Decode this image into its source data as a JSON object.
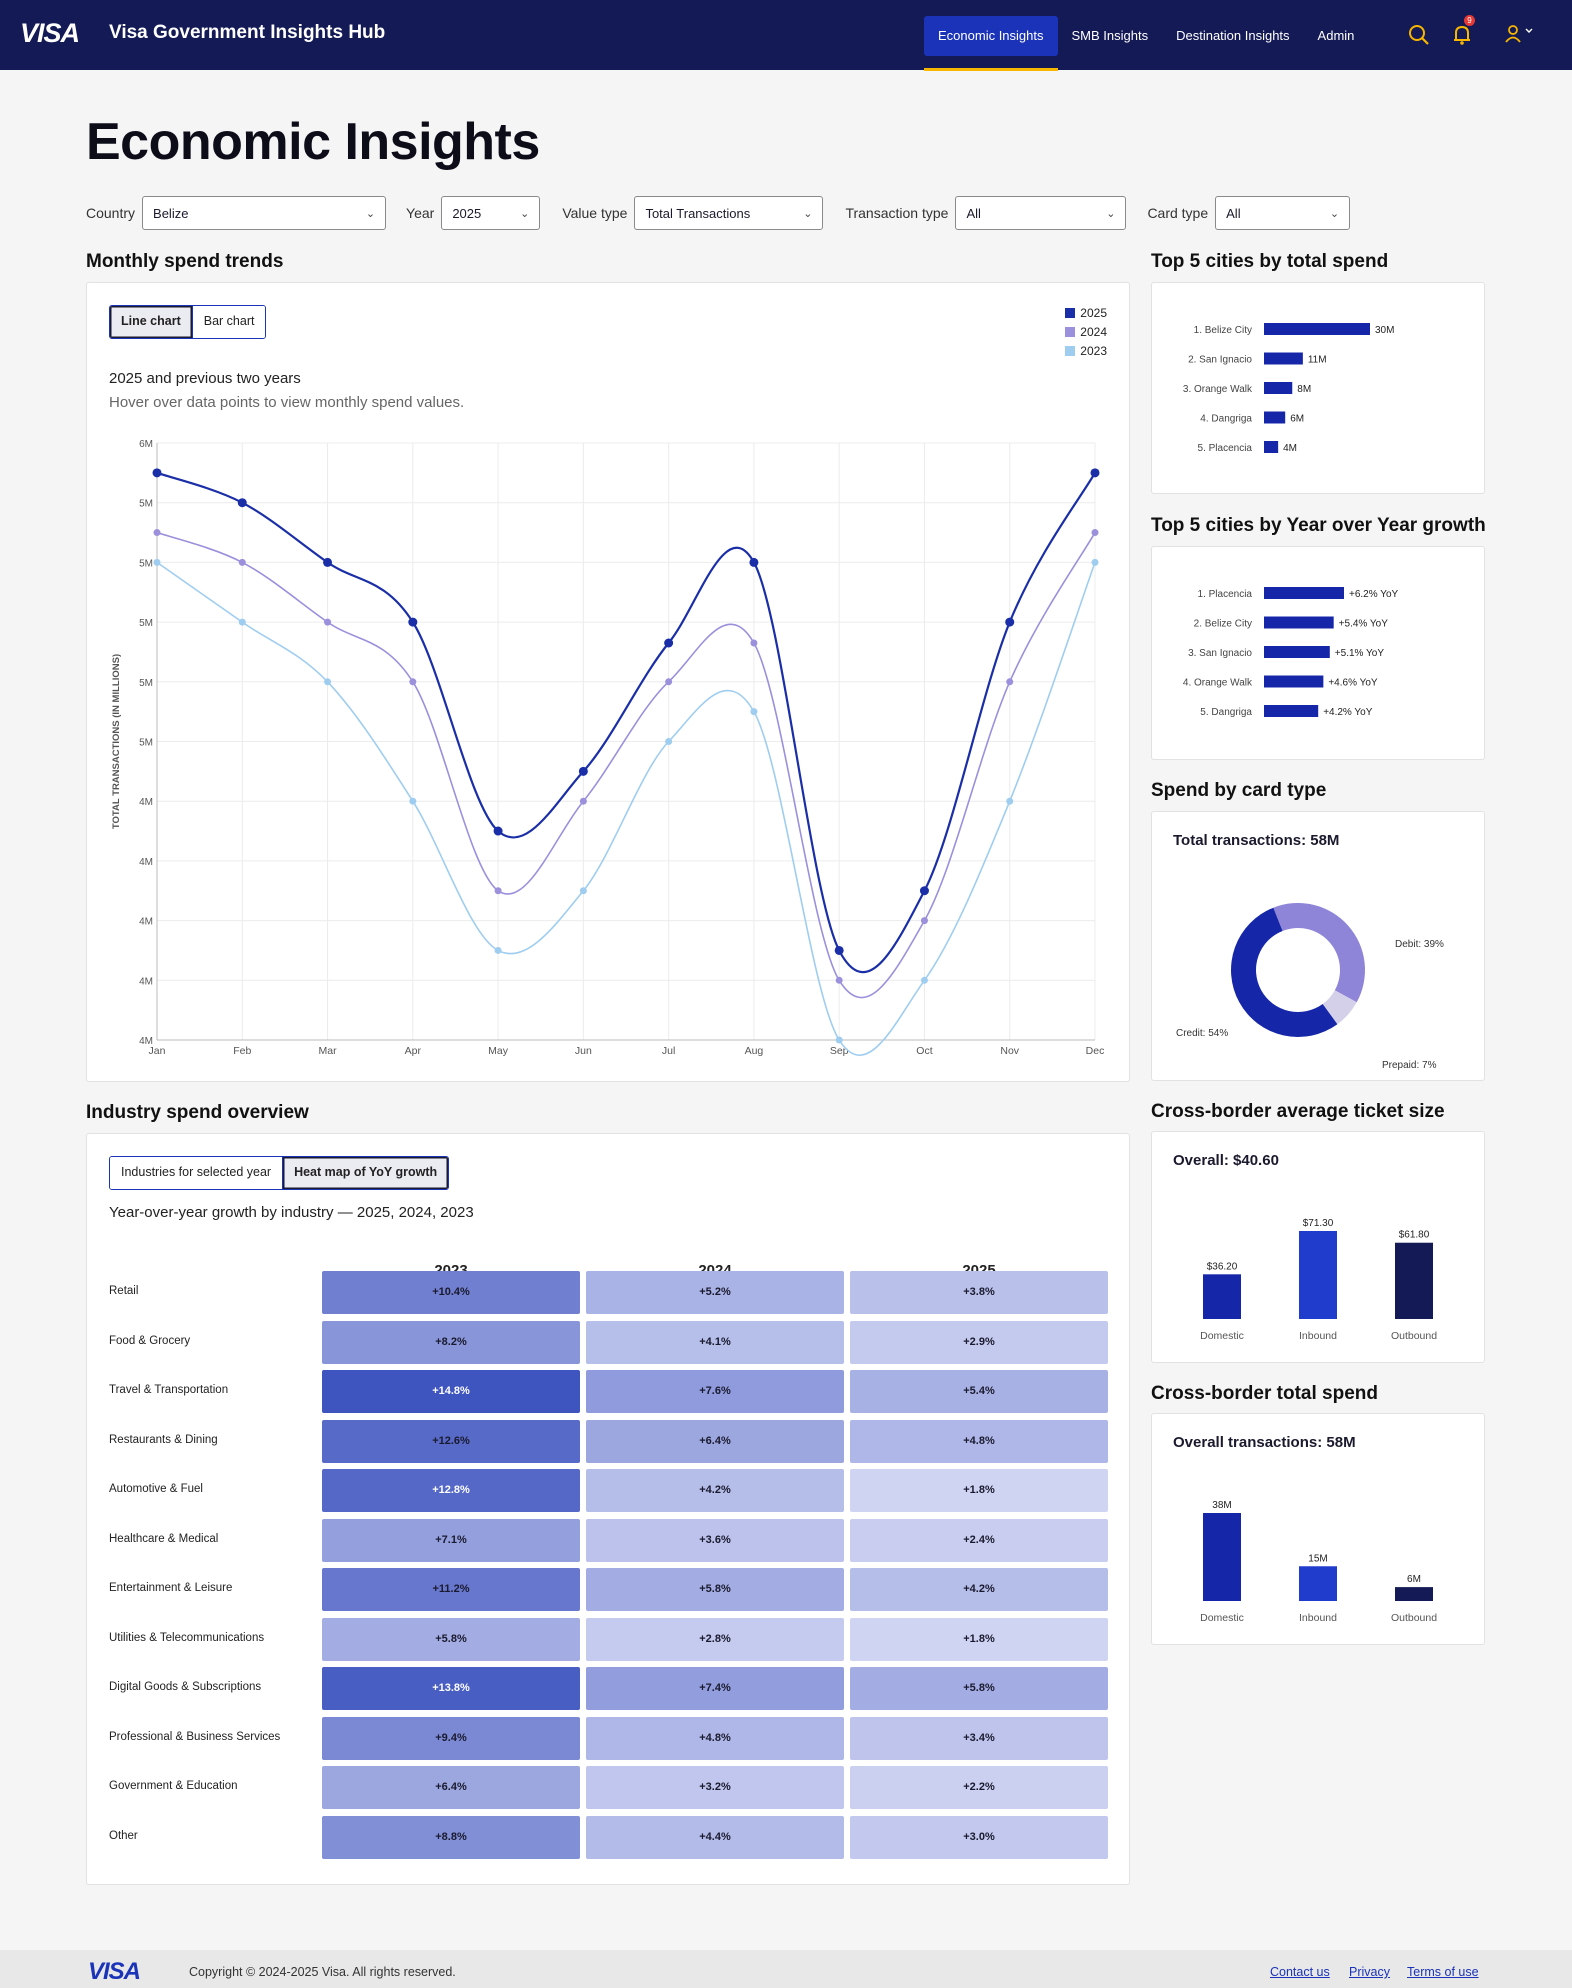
{
  "header": {
    "logo": "VISA",
    "app_title": "Visa Government Insights Hub",
    "nav": [
      "Economic Insights",
      "SMB Insights",
      "Destination Insights",
      "Admin"
    ],
    "active_nav": "Economic Insights",
    "notification_count": "9",
    "accent": "#f7b600"
  },
  "page": {
    "title": "Economic Insights"
  },
  "filters": {
    "country_label": "Country",
    "country_value": "Belize",
    "year_label": "Year",
    "year_value": "2025",
    "value_type_label": "Value type",
    "value_type_value": "Total Transactions",
    "transaction_type_label": "Transaction type",
    "transaction_type_value": "All",
    "card_type_label": "Card type",
    "card_type_value": "All"
  },
  "monthly": {
    "section_title": "Monthly spend trends",
    "tab_line": "Line chart",
    "tab_bar": "Bar chart",
    "chart_title": "2025 and previous two years",
    "chart_subtitle": "Hover over data points to view monthly spend values."
  },
  "chart_data": [
    {
      "type": "line",
      "x": [
        "Jan",
        "Feb",
        "Mar",
        "Apr",
        "May",
        "Jun",
        "Jul",
        "Aug",
        "Sep",
        "Oct",
        "Nov",
        "Dec"
      ],
      "ylabel": "TOTAL TRANSACTIONS (IN MILLIONS)",
      "ylim": [
        4.0,
        6.0
      ],
      "y_tick_labels": [
        "6M",
        "5M",
        "5M",
        "5M",
        "5M",
        "5M",
        "4M",
        "4M",
        "4M",
        "4M",
        "4M"
      ],
      "legend": "top-right",
      "grid": true,
      "series": [
        {
          "name": "2025",
          "color": "#1a2ea8",
          "values": [
            5.9,
            5.8,
            5.6,
            5.4,
            4.7,
            4.9,
            5.33,
            5.6,
            4.3,
            4.5,
            5.4,
            5.9
          ]
        },
        {
          "name": "2024",
          "color": "#9a90dc",
          "values": [
            5.7,
            5.6,
            5.4,
            5.2,
            4.5,
            4.8,
            5.2,
            5.33,
            4.2,
            4.4,
            5.2,
            5.7
          ]
        },
        {
          "name": "2023",
          "color": "#9fcdf0",
          "values": [
            5.6,
            5.4,
            5.2,
            4.8,
            4.3,
            4.5,
            5.0,
            5.1,
            4.0,
            4.2,
            4.8,
            5.6
          ]
        }
      ]
    },
    {
      "type": "bar",
      "title": "Top 5 cities by total spend",
      "categories": [
        "1. Belize City",
        "2. San Ignacio",
        "3. Orange Walk",
        "4. Dangriga",
        "5. Placencia"
      ],
      "values": [
        30,
        11,
        8,
        6,
        4
      ],
      "value_labels": [
        "30M",
        "11M",
        "8M",
        "6M",
        "4M"
      ]
    },
    {
      "type": "bar",
      "title": "Top 5 cities by Year over Year growth",
      "categories": [
        "1. Placencia",
        "2. Belize City",
        "3. San Ignacio",
        "4. Orange Walk",
        "5. Dangriga"
      ],
      "values": [
        6.2,
        5.4,
        5.1,
        4.6,
        4.2
      ],
      "value_labels": [
        "+6.2% YoY",
        "+5.4% YoY",
        "+5.1% YoY",
        "+4.6% YoY",
        "+4.2% YoY"
      ]
    },
    {
      "type": "pie",
      "title": "Spend by card type",
      "subtitle": "Total transactions: 58M",
      "categories": [
        "Credit",
        "Debit",
        "Prepaid"
      ],
      "values": [
        54,
        39,
        7
      ],
      "value_labels": [
        "Credit: 54%",
        "Debit: 39%",
        "Prepaid: 7%"
      ],
      "colors": [
        "#1527a8",
        "#8e84d8",
        "#d4d0ea"
      ]
    },
    {
      "type": "bar",
      "title": "Cross-border average ticket size",
      "subtitle": "Overall: $40.60",
      "categories": [
        "Domestic",
        "Inbound",
        "Outbound"
      ],
      "values": [
        36.2,
        71.3,
        61.8
      ],
      "value_labels": [
        "$36.20",
        "$71.30",
        "$61.80"
      ],
      "colors": [
        "#1527a8",
        "#1f3ccc",
        "#141a55"
      ]
    },
    {
      "type": "bar",
      "title": "Cross-border total spend",
      "subtitle": "Overall transactions: 58M",
      "categories": [
        "Domestic",
        "Inbound",
        "Outbound"
      ],
      "values": [
        38,
        15,
        6
      ],
      "value_labels": [
        "38M",
        "15M",
        "6M"
      ],
      "colors": [
        "#1527a8",
        "#1f3ccc",
        "#141a55"
      ]
    },
    {
      "type": "heatmap",
      "title": "Year-over-year growth by industry — 2025, 2024, 2023",
      "columns": [
        "2023",
        "2024",
        "2025"
      ],
      "rows": [
        "Retail",
        "Food & Grocery",
        "Travel & Transportation",
        "Restaurants & Dining",
        "Automotive & Fuel",
        "Healthcare & Medical",
        "Entertainment & Leisure",
        "Utilities & Telecommunications",
        "Digital Goods & Subscriptions",
        "Professional & Business Services",
        "Government & Education",
        "Other"
      ],
      "values": [
        [
          10.4,
          5.2,
          3.8
        ],
        [
          8.2,
          4.1,
          2.9
        ],
        [
          14.8,
          7.6,
          5.4
        ],
        [
          12.6,
          6.4,
          4.8
        ],
        [
          12.8,
          4.2,
          1.8
        ],
        [
          7.1,
          3.6,
          2.4
        ],
        [
          11.2,
          5.8,
          4.2
        ],
        [
          5.8,
          2.8,
          1.8
        ],
        [
          13.8,
          7.4,
          5.8
        ],
        [
          9.4,
          4.8,
          3.4
        ],
        [
          6.4,
          3.2,
          2.2
        ],
        [
          8.8,
          4.4,
          3.0
        ]
      ],
      "labels": [
        [
          "+10.4%",
          "+5.2%",
          "+3.8%"
        ],
        [
          "+8.2%",
          "+4.1%",
          "+2.9%"
        ],
        [
          "+14.8%",
          "+7.6%",
          "+5.4%"
        ],
        [
          "+12.6%",
          "+6.4%",
          "+4.8%"
        ],
        [
          "+12.8%",
          "+4.2%",
          "+1.8%"
        ],
        [
          "+7.1%",
          "+3.6%",
          "+2.4%"
        ],
        [
          "+11.2%",
          "+5.8%",
          "+4.2%"
        ],
        [
          "+5.8%",
          "+2.8%",
          "+1.8%"
        ],
        [
          "+13.8%",
          "+7.4%",
          "+5.8%"
        ],
        [
          "+9.4%",
          "+4.8%",
          "+3.4%"
        ],
        [
          "+6.4%",
          "+3.2%",
          "+2.2%"
        ],
        [
          "+8.8%",
          "+4.4%",
          "+3.0%"
        ]
      ]
    }
  ],
  "industry": {
    "section_title": "Industry spend overview",
    "tab_industries": "Industries for selected year",
    "tab_heatmap": "Heat map of YoY growth",
    "chart_title": "Year-over-year growth by industry — 2025, 2024, 2023"
  },
  "side": {
    "top_cities_title": "Top 5 cities by total spend",
    "yoy_title": "Top 5 cities by Year over Year growth",
    "card_type_title": "Spend by card type",
    "card_type_total": "Total transactions: 58M",
    "ticket_title": "Cross-border average ticket size",
    "ticket_overall": "Overall: $40.60",
    "xb_title": "Cross-border total spend",
    "xb_overall": "Overall transactions: 58M"
  },
  "footer": {
    "logo": "VISA",
    "copyright": "Copyright © 2024-2025 Visa. All rights reserved.",
    "links": [
      "Contact us",
      "Privacy",
      "Terms of use"
    ]
  }
}
